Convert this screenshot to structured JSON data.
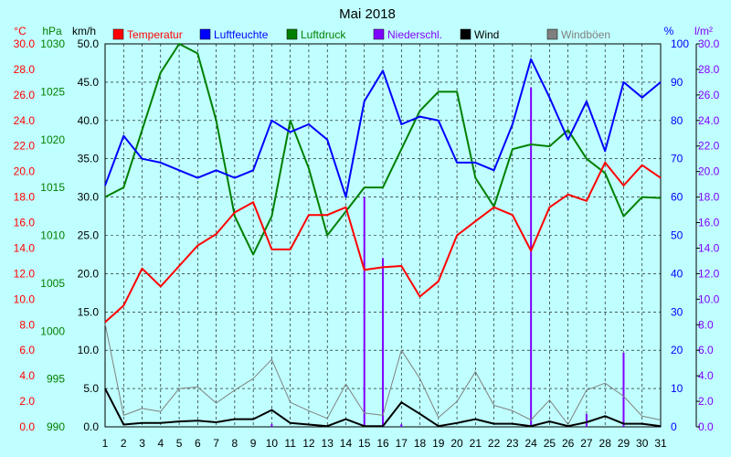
{
  "chart_data": {
    "type": "line",
    "title": "Mai 2018",
    "x": [
      1,
      2,
      3,
      4,
      5,
      6,
      7,
      8,
      9,
      10,
      11,
      12,
      13,
      14,
      15,
      16,
      17,
      18,
      19,
      20,
      21,
      22,
      23,
      24,
      25,
      26,
      27,
      28,
      29,
      30,
      31
    ],
    "axes": {
      "temp": {
        "unit": "°C",
        "min": 0,
        "max": 30,
        "step": 2,
        "decimals": 1,
        "color": "#ff0000"
      },
      "press": {
        "unit": "hPa",
        "min": 990,
        "max": 1030,
        "step": 5,
        "decimals": 0,
        "color": "#008000"
      },
      "wind": {
        "unit": "km/h",
        "min": 0,
        "max": 50,
        "step": 5,
        "decimals": 1,
        "color": "#000000"
      },
      "hum": {
        "unit": "%",
        "min": 0,
        "max": 100,
        "step": 10,
        "decimals": 0,
        "color": "#0000ff"
      },
      "rain": {
        "unit": "l/m²",
        "min": 0,
        "max": 30,
        "step": 2,
        "decimals": 1,
        "color": "#8000ff"
      }
    },
    "series": [
      {
        "name": "Temperatur",
        "axis": "temp",
        "kind": "line",
        "color": "#ff0000",
        "values": [
          8.2,
          9.5,
          12.4,
          11.0,
          12.6,
          14.2,
          15.1,
          16.8,
          17.6,
          13.9,
          13.9,
          16.6,
          16.6,
          17.2,
          12.3,
          12.5,
          12.6,
          10.2,
          11.4,
          15.0,
          16.1,
          17.2,
          16.6,
          13.8,
          17.2,
          18.2,
          17.7,
          20.7,
          18.9,
          20.5,
          19.5
        ]
      },
      {
        "name": "Luftfeuchte",
        "axis": "hum",
        "kind": "line",
        "color": "#0000ff",
        "values": [
          63,
          76,
          70,
          69,
          67,
          65,
          67,
          65,
          67,
          80,
          77,
          79,
          75,
          60,
          85,
          93,
          79,
          81,
          80,
          69,
          69,
          67,
          79,
          96,
          86,
          75,
          85,
          72,
          90,
          86,
          90
        ]
      },
      {
        "name": "Luftdruck",
        "axis": "press",
        "kind": "line",
        "color": "#008000",
        "values": [
          1014,
          1015,
          1021,
          1027,
          1030,
          1029,
          1022,
          1012,
          1008,
          1012,
          1022,
          1017,
          1010,
          1012.5,
          1015,
          1015,
          1019,
          1023,
          1025,
          1025,
          1016,
          1013,
          1019,
          1019.5,
          1019.3,
          1021,
          1018,
          1016.5,
          1012,
          1014,
          1013.9
        ]
      },
      {
        "name": "Niederschl.",
        "axis": "rain",
        "kind": "bar",
        "color": "#8000ff",
        "values": [
          0,
          0,
          0,
          0,
          0,
          0,
          0,
          0,
          0,
          0.2,
          0,
          0,
          0,
          0,
          18.0,
          13.2,
          0.2,
          0,
          0,
          0,
          0,
          0,
          0,
          26.6,
          0,
          0,
          1.0,
          0,
          5.8,
          0,
          0
        ]
      },
      {
        "name": "Wind",
        "axis": "wind",
        "kind": "line",
        "color": "#000000",
        "values": [
          5.0,
          0.3,
          0.5,
          0.5,
          0.7,
          0.8,
          0.6,
          1.0,
          1.0,
          2.2,
          0.5,
          0.3,
          0.1,
          1.0,
          0.1,
          0.1,
          3.2,
          1.7,
          0.1,
          0.5,
          1.0,
          0.4,
          0.4,
          0.1,
          0.7,
          0.1,
          0.6,
          1.4,
          0.4,
          0.4,
          0.1
        ]
      },
      {
        "name": "Windböen",
        "axis": "wind",
        "kind": "line",
        "color": "#808080",
        "values": [
          13.5,
          1.5,
          2.4,
          2.0,
          5.0,
          5.2,
          3.1,
          4.8,
          6.3,
          8.8,
          3.2,
          2.1,
          1.1,
          5.6,
          1.8,
          1.5,
          10.0,
          6.3,
          1.2,
          3.3,
          7.2,
          2.8,
          2.1,
          0.9,
          3.5,
          0.3,
          4.8,
          5.7,
          4.0,
          1.4,
          0.9
        ]
      }
    ],
    "grid": true,
    "legend_position": "top"
  }
}
